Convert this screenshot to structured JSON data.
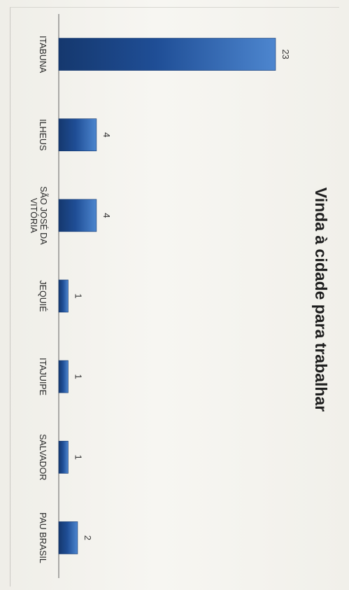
{
  "chart_data": {
    "type": "bar",
    "title": "Vinda à cidade para trabalhar",
    "categories": [
      "ITABUNA",
      "ILHEUS",
      "SÃO JOSÉ DA VITÓRIA",
      "JEQUIÉ",
      "ITAJUIPE",
      "SALVADOR",
      "PAU BRASIL"
    ],
    "category_lines": [
      [
        "ITABUNA"
      ],
      [
        "ILHEUS"
      ],
      [
        "SÃO JOSÉ DA",
        "VITÓRIA"
      ],
      [
        "JEQUIÉ"
      ],
      [
        "ITAJUIPE"
      ],
      [
        "SALVADOR"
      ],
      [
        "PAU BRASIL"
      ]
    ],
    "values": [
      23,
      4,
      4,
      1,
      1,
      1,
      2
    ],
    "value_labels": [
      "23",
      "4",
      "4",
      "1",
      "1",
      "1",
      "2"
    ],
    "ylim": [
      0,
      23
    ],
    "grid": false,
    "legend": false,
    "bar_color": "#1f4e96",
    "bar_highlight": "#4d86cf",
    "bar_shadow": "#15386e"
  }
}
